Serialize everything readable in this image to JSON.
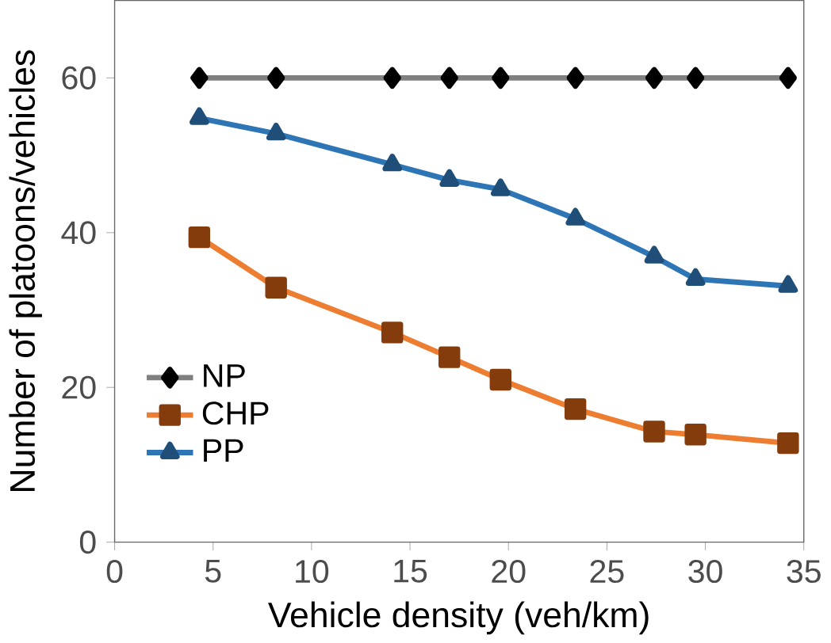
{
  "chart_data": {
    "type": "line",
    "xlabel": "Vehicle density (veh/km)",
    "ylabel": "Number of platoons/vehicles",
    "x": [
      4.3,
      8.2,
      14.1,
      17.0,
      19.6,
      23.4,
      27.4,
      29.5,
      34.2
    ],
    "series": [
      {
        "name": "NP",
        "color": "#7f7f7f",
        "marker": "diamond",
        "values": [
          60,
          60,
          60,
          60,
          60,
          60,
          60,
          60,
          60
        ]
      },
      {
        "name": "CHP",
        "color": "#ed7d31",
        "marker": "square",
        "values": [
          39.4,
          32.9,
          27.1,
          23.9,
          21.0,
          17.2,
          14.3,
          13.9,
          12.8
        ]
      },
      {
        "name": "PP",
        "color": "#2e75b6",
        "marker": "triangle",
        "values": [
          54.8,
          52.8,
          48.8,
          46.8,
          45.6,
          41.8,
          36.9,
          34.0,
          33.1
        ]
      }
    ],
    "xlim": [
      0,
      35
    ],
    "xticks": [
      0,
      5,
      10,
      15,
      20,
      25,
      30,
      35
    ],
    "ylim": [
      0,
      70
    ],
    "yticks": [
      0,
      20,
      40,
      60
    ],
    "grid": false,
    "legend": "bottom left"
  }
}
